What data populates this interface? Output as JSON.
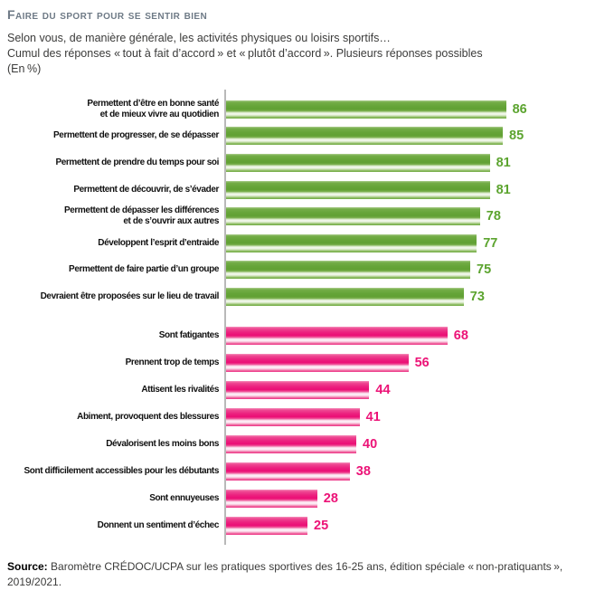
{
  "header": {
    "title": "Faire du sport pour se sentir bien",
    "subtitle_lines": [
      "Selon vous, de manière générale, les activités physiques ou loisirs sportifs…",
      "Cumul des réponses « tout à fait d’accord » et « plutôt d’accord ». Plusieurs réponses possibles",
      "(En %)"
    ]
  },
  "chart_data": {
    "type": "bar",
    "orientation": "horizontal",
    "value_unit": "%",
    "xlim": [
      0,
      100
    ],
    "grid": false,
    "legend": "none",
    "title": "Faire du sport pour se sentir bien",
    "groups": [
      {
        "name": "positive-statements",
        "bar_color": "#62a136",
        "value_color": "#5ca42f",
        "items": [
          {
            "label": "Permettent d’être en bonne santé\net de mieux vivre au quotidien",
            "value": 86
          },
          {
            "label": "Permettent de progresser, de se dépasser",
            "value": 85
          },
          {
            "label": "Permettent de prendre du temps pour soi",
            "value": 81
          },
          {
            "label": "Permettent de découvrir, de s’évader",
            "value": 81
          },
          {
            "label": "Permettent de dépasser les différences\net de s’ouvrir aux autres",
            "value": 78
          },
          {
            "label": "Développent l’esprit d’entraide",
            "value": 77
          },
          {
            "label": "Permettent de faire partie d’un groupe",
            "value": 75
          },
          {
            "label": "Devraient être proposées sur le lieu de travail",
            "value": 73
          }
        ]
      },
      {
        "name": "negative-statements",
        "bar_color": "#ec0f74",
        "value_color": "#ec1377",
        "items": [
          {
            "label": "Sont fatigantes",
            "value": 68
          },
          {
            "label": "Prennent trop de temps",
            "value": 56
          },
          {
            "label": "Attisent les rivalités",
            "value": 44
          },
          {
            "label": "Abiment, provoquent des blessures",
            "value": 41
          },
          {
            "label": "Dévalorisent les moins bons",
            "value": 40
          },
          {
            "label": "Sont difficilement accessibles pour les débutants",
            "value": 38
          },
          {
            "label": "Sont ennuyeuses",
            "value": 28
          },
          {
            "label": "Donnent un sentiment d’échec",
            "value": 25
          }
        ]
      }
    ]
  },
  "source": {
    "label": "Source:",
    "text": " Baromètre CRÉDOC/UCPA sur les pratiques sportives des 16-25 ans, édition spéciale « non-pratiquants », 2019/2021."
  }
}
